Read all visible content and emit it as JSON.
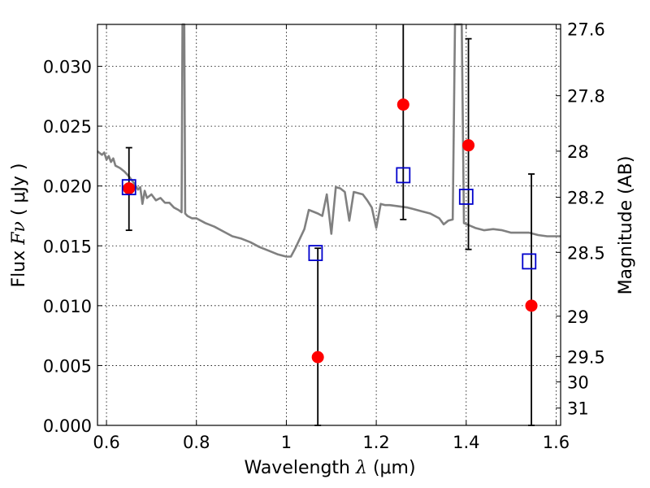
{
  "chart_data": {
    "type": "scatter",
    "title": "",
    "x_axis": {
      "label_prefix": "Wavelength",
      "label_symbol": "λ",
      "label_units": "(μm)",
      "range": [
        0.58,
        1.61
      ],
      "ticks": [
        0.6,
        0.8,
        1.0,
        1.2,
        1.4,
        1.6
      ],
      "tick_labels": [
        "0.6",
        "0.8",
        "1",
        "1.2",
        "1.4",
        "1.6"
      ]
    },
    "y_axis": {
      "label_prefix": "Flux",
      "label_symbol": "Fν",
      "label_units": "( μJy )",
      "range": [
        0.0,
        0.0335
      ],
      "ticks": [
        0.0,
        0.005,
        0.01,
        0.015,
        0.02,
        0.025,
        0.03
      ],
      "tick_labels": [
        "0.000",
        "0.005",
        "0.010",
        "0.015",
        "0.020",
        "0.025",
        "0.030"
      ]
    },
    "y2_axis": {
      "label": "Magnitude (AB)",
      "ticks": [
        {
          "mag": 27.6,
          "label": "27.6"
        },
        {
          "mag": 27.8,
          "label": "27.8"
        },
        {
          "mag": 28.0,
          "label": "28"
        },
        {
          "mag": 28.2,
          "label": "28.2"
        },
        {
          "mag": 28.5,
          "label": "28.5"
        },
        {
          "mag": 29.0,
          "label": "29"
        },
        {
          "mag": 29.5,
          "label": "29.5"
        },
        {
          "mag": 30.0,
          "label": "30"
        },
        {
          "mag": 31.0,
          "label": "31"
        }
      ]
    },
    "grid": true,
    "series": [
      {
        "type": "line",
        "color": "#808080",
        "points": [
          [
            0.58,
            0.0229
          ],
          [
            0.59,
            0.0226
          ],
          [
            0.595,
            0.0228
          ],
          [
            0.6,
            0.0222
          ],
          [
            0.605,
            0.0225
          ],
          [
            0.61,
            0.022
          ],
          [
            0.615,
            0.0223
          ],
          [
            0.62,
            0.0217
          ],
          [
            0.63,
            0.0215
          ],
          [
            0.64,
            0.0212
          ],
          [
            0.65,
            0.0208
          ],
          [
            0.66,
            0.0203
          ],
          [
            0.67,
            0.0197
          ],
          [
            0.675,
            0.0199
          ],
          [
            0.68,
            0.0185
          ],
          [
            0.685,
            0.0196
          ],
          [
            0.69,
            0.019
          ],
          [
            0.7,
            0.0193
          ],
          [
            0.71,
            0.0188
          ],
          [
            0.72,
            0.019
          ],
          [
            0.73,
            0.0186
          ],
          [
            0.74,
            0.0186
          ],
          [
            0.75,
            0.0182
          ],
          [
            0.76,
            0.018
          ],
          [
            0.767,
            0.0178
          ],
          [
            0.769,
            0.034
          ],
          [
            0.773,
            0.034
          ],
          [
            0.775,
            0.0177
          ],
          [
            0.78,
            0.0175
          ],
          [
            0.79,
            0.0173
          ],
          [
            0.8,
            0.0173
          ],
          [
            0.82,
            0.0169
          ],
          [
            0.84,
            0.0166
          ],
          [
            0.86,
            0.0162
          ],
          [
            0.88,
            0.0158
          ],
          [
            0.9,
            0.0156
          ],
          [
            0.92,
            0.0153
          ],
          [
            0.94,
            0.0149
          ],
          [
            0.96,
            0.0146
          ],
          [
            0.98,
            0.0143
          ],
          [
            1.0,
            0.0141
          ],
          [
            1.01,
            0.0141
          ],
          [
            1.02,
            0.0148
          ],
          [
            1.04,
            0.0164
          ],
          [
            1.05,
            0.018
          ],
          [
            1.07,
            0.0177
          ],
          [
            1.08,
            0.0175
          ],
          [
            1.09,
            0.0193
          ],
          [
            1.1,
            0.016
          ],
          [
            1.11,
            0.0199
          ],
          [
            1.12,
            0.0198
          ],
          [
            1.13,
            0.0195
          ],
          [
            1.14,
            0.0171
          ],
          [
            1.15,
            0.0195
          ],
          [
            1.17,
            0.0193
          ],
          [
            1.18,
            0.0188
          ],
          [
            1.19,
            0.0182
          ],
          [
            1.2,
            0.0165
          ],
          [
            1.21,
            0.0185
          ],
          [
            1.22,
            0.0184
          ],
          [
            1.23,
            0.0184
          ],
          [
            1.25,
            0.0183
          ],
          [
            1.27,
            0.0182
          ],
          [
            1.29,
            0.018
          ],
          [
            1.3,
            0.0179
          ],
          [
            1.32,
            0.0177
          ],
          [
            1.34,
            0.0173
          ],
          [
            1.35,
            0.0168
          ],
          [
            1.36,
            0.0171
          ],
          [
            1.37,
            0.0172
          ],
          [
            1.375,
            0.034
          ],
          [
            1.39,
            0.034
          ],
          [
            1.395,
            0.0169
          ],
          [
            1.42,
            0.0165
          ],
          [
            1.44,
            0.0163
          ],
          [
            1.46,
            0.0164
          ],
          [
            1.48,
            0.0163
          ],
          [
            1.5,
            0.0161
          ],
          [
            1.54,
            0.0161
          ],
          [
            1.56,
            0.0159
          ],
          [
            1.58,
            0.0158
          ],
          [
            1.61,
            0.0158
          ]
        ]
      },
      {
        "type": "scatter",
        "marker": "circle",
        "color": "#ff0000",
        "points": [
          {
            "x": 0.65,
            "y": 0.0198,
            "yerr_low": 0.0163,
            "yerr_high": 0.0232
          },
          {
            "x": 1.07,
            "y": 0.0057,
            "yerr_low": 0.0,
            "yerr_high": 0.0148
          },
          {
            "x": 1.26,
            "y": 0.0268,
            "yerr_low": 0.0172,
            "yerr_high": 0.035
          },
          {
            "x": 1.405,
            "y": 0.0234,
            "yerr_low": 0.0147,
            "yerr_high": 0.0323
          },
          {
            "x": 1.545,
            "y": 0.01,
            "yerr_low": 0.0,
            "yerr_high": 0.021
          }
        ]
      },
      {
        "type": "scatter",
        "marker": "square",
        "color": "#0000cc",
        "points": [
          {
            "x": 0.65,
            "y": 0.0199
          },
          {
            "x": 1.065,
            "y": 0.0144
          },
          {
            "x": 1.26,
            "y": 0.0209
          },
          {
            "x": 1.4,
            "y": 0.0191
          },
          {
            "x": 1.54,
            "y": 0.0137
          }
        ]
      }
    ]
  }
}
